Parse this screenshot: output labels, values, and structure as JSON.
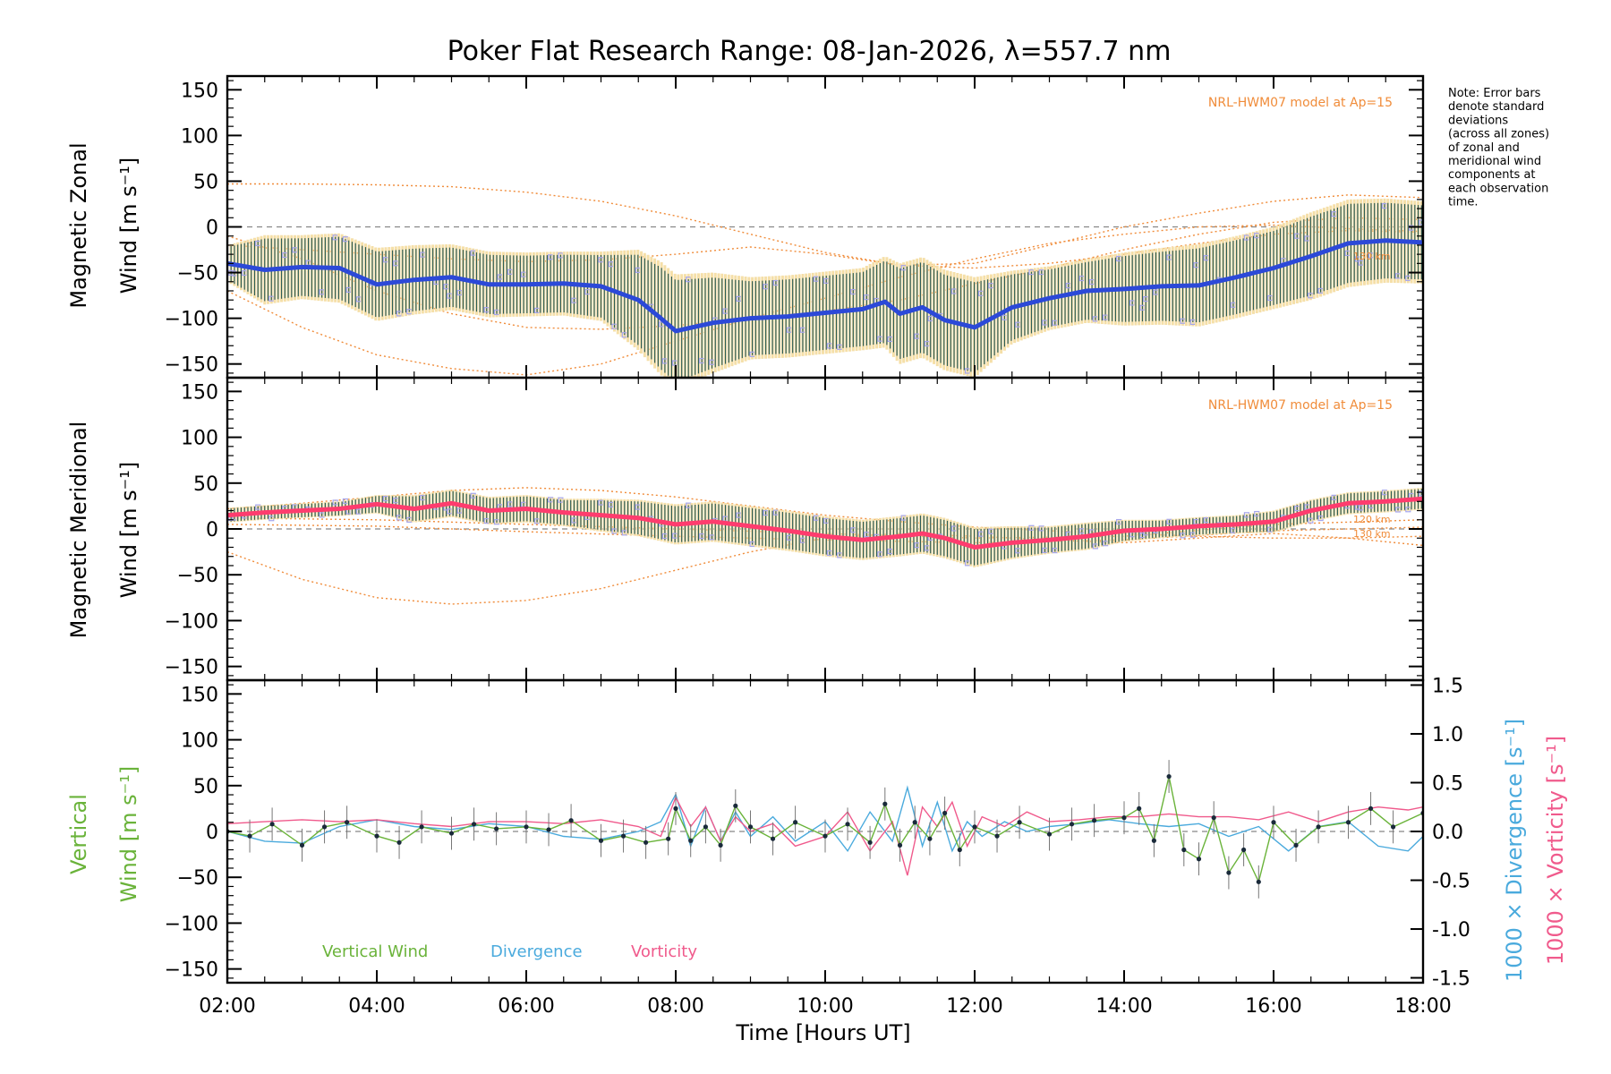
{
  "title": "Poker Flat Research Range: 08-Jan-2026, λ=557.7 nm",
  "note_lines": [
    "Note: Error bars",
    "denote standard",
    "deviations",
    "(across all zones)",
    "of zonal and",
    "meridional wind",
    "components at",
    "each observation",
    "time."
  ],
  "xlabel": "Time [Hours UT]",
  "x_tick_labels": [
    "02:00",
    "04:00",
    "06:00",
    "08:00",
    "10:00",
    "12:00",
    "14:00",
    "16:00",
    "18:00"
  ],
  "colors": {
    "axis": "#000000",
    "zonal": "#2c49d8",
    "zonal_light": "#5a9ae0",
    "meridional": "#ff3c6e",
    "model": "#f08c3a",
    "scatter": "#a6a6ec",
    "errbar": "#2f5e5a",
    "errbar_light": "#f5dfa8",
    "vertical": "#6ab33a",
    "divergence": "#4aaadd",
    "vorticity": "#f05a8c",
    "zero": "#888888"
  },
  "panels": {
    "zonal": {
      "ylabel_line1": "Magnetic Zonal",
      "ylabel_line2": "Wind [m s⁻¹]",
      "model_label": "NRL-HWM07 model at Ap=15",
      "alt_label": "130 km"
    },
    "meridional": {
      "ylabel_line1": "Magnetic Meridional",
      "ylabel_line2": "Wind [m s⁻¹]",
      "model_label": "NRL-HWM07 model at Ap=15",
      "alt_labels": [
        "120 km",
        "130 km"
      ]
    },
    "vertical": {
      "ylabel_line1": "Vertical",
      "ylabel_line2": "Wind [m s⁻¹]",
      "right_label_div": "1000 × Divergence [s⁻¹]",
      "right_label_vort": "1000 × Vorticity [s⁻¹]",
      "legend": {
        "vertical": "Vertical Wind",
        "divergence": "Divergence",
        "vorticity": "Vorticity"
      }
    }
  },
  "chart_data": [
    {
      "type": "line",
      "title": "Magnetic Zonal Wind",
      "ylabel": "Magnetic Zonal Wind [m s-1]",
      "xlim_hours": [
        2,
        18
      ],
      "ylim": [
        -165,
        165
      ],
      "yticks": [
        -150,
        -100,
        -50,
        0,
        50,
        100,
        150
      ],
      "series": [
        {
          "name": "zonal wind",
          "x": [
            2,
            2.5,
            3,
            3.5,
            4,
            4.5,
            5,
            5.5,
            6,
            6.5,
            7,
            7.5,
            7.8,
            8,
            8.5,
            9,
            9.5,
            10,
            10.5,
            10.8,
            11,
            11.3,
            11.6,
            12,
            12.5,
            13,
            13.5,
            14,
            14.5,
            15,
            15.5,
            16,
            16.5,
            17,
            17.5,
            18
          ],
          "y": [
            -40,
            -47,
            -44,
            -45,
            -63,
            -58,
            -55,
            -63,
            -63,
            -62,
            -65,
            -80,
            -100,
            -114,
            -105,
            -100,
            -98,
            -94,
            -90,
            -82,
            -95,
            -88,
            -102,
            -110,
            -88,
            -78,
            -70,
            -68,
            -65,
            -64,
            -55,
            -45,
            -32,
            -18,
            -15,
            -17
          ],
          "errors": [
            20,
            38,
            35,
            38,
            40,
            38,
            36,
            36,
            35,
            35,
            38,
            55,
            62,
            62,
            55,
            45,
            45,
            45,
            45,
            50,
            55,
            55,
            55,
            55,
            40,
            35,
            35,
            40,
            42,
            45,
            45,
            45,
            48,
            48,
            46,
            45
          ]
        },
        {
          "name": "NRL-HWM07 model (120 km)",
          "x": [
            2,
            3,
            4,
            5,
            6,
            7,
            8,
            9,
            10,
            11,
            12,
            13,
            14,
            15,
            16,
            17,
            18
          ],
          "y": [
            -10,
            -35,
            -70,
            -95,
            -110,
            -112,
            -108,
            -100,
            -92,
            -80,
            -62,
            -45,
            -25,
            -8,
            5,
            10,
            8
          ]
        },
        {
          "name": "NRL-HWM07 model (130 km)",
          "x": [
            2,
            3,
            4,
            5,
            6,
            7,
            8,
            9,
            10,
            11,
            12,
            13,
            14,
            15,
            16,
            17,
            18
          ],
          "y": [
            47,
            47,
            46,
            44,
            38,
            28,
            12,
            -8,
            -28,
            -42,
            -45,
            -40,
            -30,
            -18,
            -8,
            -4,
            -6
          ]
        },
        {
          "name": "NRL-HWM07 model (upper)",
          "x": [
            2,
            3,
            4,
            5,
            6,
            7,
            8,
            9,
            10,
            11,
            12,
            13,
            14,
            15,
            16,
            17,
            18
          ],
          "y": [
            -20,
            -25,
            -30,
            -35,
            -38,
            -36,
            -30,
            -22,
            -30,
            -42,
            -40,
            -20,
            0,
            15,
            28,
            35,
            32
          ]
        },
        {
          "name": "NRL-HWM07 model (lower)",
          "x": [
            2,
            3,
            4,
            5,
            6,
            7,
            8,
            9,
            10,
            11,
            12,
            13,
            14,
            15,
            16,
            17,
            18
          ],
          "y": [
            -70,
            -110,
            -140,
            -155,
            -162,
            -150,
            -125,
            -100,
            -78,
            -55,
            -35,
            -18,
            -8,
            0,
            2,
            -2,
            -5
          ]
        }
      ]
    },
    {
      "type": "line",
      "title": "Magnetic Meridional Wind",
      "ylabel": "Magnetic Meridional Wind [m s-1]",
      "xlim_hours": [
        2,
        18
      ],
      "ylim": [
        -165,
        165
      ],
      "yticks": [
        -150,
        -100,
        -50,
        0,
        50,
        100,
        150
      ],
      "series": [
        {
          "name": "meridional wind",
          "x": [
            2,
            2.5,
            3,
            3.5,
            4,
            4.5,
            5,
            5.5,
            6,
            6.5,
            7,
            7.5,
            8,
            8.5,
            9,
            9.5,
            10,
            10.5,
            11,
            11.3,
            11.6,
            12,
            12.5,
            13,
            13.5,
            14,
            14.5,
            15,
            15.5,
            16,
            16.5,
            17,
            17.5,
            18
          ],
          "y": [
            15,
            18,
            20,
            22,
            27,
            22,
            28,
            20,
            22,
            18,
            15,
            12,
            5,
            8,
            3,
            -2,
            -8,
            -12,
            -8,
            -5,
            -10,
            -20,
            -15,
            -12,
            -8,
            -2,
            0,
            3,
            5,
            8,
            20,
            28,
            30,
            33
          ],
          "errors": [
            8,
            8,
            8,
            8,
            10,
            15,
            15,
            15,
            15,
            15,
            18,
            20,
            22,
            22,
            22,
            22,
            22,
            22,
            22,
            22,
            22,
            22,
            18,
            15,
            15,
            12,
            10,
            10,
            10,
            12,
            12,
            12,
            12,
            12
          ]
        },
        {
          "name": "NRL-HWM07 model (upper)",
          "x": [
            2,
            3,
            4,
            5,
            6,
            7,
            8,
            9,
            10,
            11,
            12,
            13,
            14,
            15,
            16,
            17,
            18
          ],
          "y": [
            22,
            28,
            35,
            42,
            45,
            42,
            35,
            25,
            15,
            8,
            2,
            -2,
            -5,
            -8,
            -10,
            -10,
            -8
          ]
        },
        {
          "name": "NRL-HWM07 model (lower)",
          "x": [
            2,
            3,
            4,
            5,
            6,
            7,
            8,
            9,
            10,
            11,
            12,
            13,
            14,
            15,
            16,
            17,
            18
          ],
          "y": [
            -25,
            -55,
            -75,
            -82,
            -78,
            -65,
            -45,
            -25,
            -10,
            -5,
            -8,
            -12,
            -15,
            -10,
            -5,
            -10,
            -18
          ]
        },
        {
          "name": "NRL-HWM07 model (120 km)",
          "x": [
            2,
            4,
            6,
            8,
            10,
            12,
            14,
            16,
            18
          ],
          "y": [
            12,
            10,
            5,
            0,
            -5,
            -10,
            -8,
            5,
            10
          ]
        },
        {
          "name": "NRL-HWM07 model (130 km)",
          "x": [
            2,
            4,
            6,
            8,
            10,
            12,
            14,
            16,
            18
          ],
          "y": [
            5,
            3,
            -3,
            -8,
            -12,
            -15,
            -12,
            -2,
            2
          ]
        }
      ]
    },
    {
      "type": "line",
      "title": "Vertical Wind, Divergence, Vorticity",
      "ylabel": "Vertical Wind [m s-1]",
      "y2label": "1000 x Divergence / Vorticity [s-1]",
      "xlim_hours": [
        2,
        18
      ],
      "ylim": [
        -165,
        165
      ],
      "y2lim": [
        -1.55,
        1.55
      ],
      "yticks": [
        -150,
        -100,
        -50,
        0,
        50,
        100,
        150
      ],
      "y2ticks": [
        -1.5,
        -1.0,
        -0.5,
        0.0,
        0.5,
        1.0,
        1.5
      ],
      "series": [
        {
          "name": "Vertical Wind",
          "axis": "left",
          "x": [
            2,
            2.3,
            2.6,
            3,
            3.3,
            3.6,
            4,
            4.3,
            4.6,
            5,
            5.3,
            5.6,
            6,
            6.3,
            6.6,
            7,
            7.3,
            7.6,
            7.9,
            8,
            8.2,
            8.4,
            8.6,
            8.8,
            9,
            9.3,
            9.6,
            10,
            10.3,
            10.6,
            10.8,
            11,
            11.2,
            11.4,
            11.6,
            11.8,
            12,
            12.3,
            12.6,
            13,
            13.3,
            13.6,
            14,
            14.2,
            14.4,
            14.6,
            14.8,
            15,
            15.2,
            15.4,
            15.6,
            15.8,
            16,
            16.3,
            16.6,
            17,
            17.3,
            17.6,
            18
          ],
          "y": [
            0,
            -5,
            8,
            -15,
            5,
            10,
            -5,
            -12,
            5,
            -2,
            8,
            3,
            5,
            2,
            12,
            -10,
            -5,
            -12,
            -8,
            25,
            -10,
            5,
            -15,
            28,
            5,
            -8,
            10,
            -5,
            8,
            -12,
            30,
            -15,
            10,
            -8,
            20,
            -20,
            5,
            -5,
            10,
            -3,
            8,
            12,
            15,
            25,
            -10,
            60,
            -20,
            -30,
            15,
            -45,
            -20,
            -55,
            10,
            -15,
            5,
            10,
            25,
            5,
            20
          ]
        },
        {
          "name": "Divergence",
          "axis": "right",
          "x": [
            2,
            2.5,
            3,
            3.5,
            4,
            4.5,
            5,
            5.5,
            6,
            6.5,
            7,
            7.5,
            7.8,
            8,
            8.2,
            8.4,
            8.6,
            8.8,
            9,
            9.3,
            9.6,
            10,
            10.3,
            10.6,
            10.9,
            11.1,
            11.3,
            11.5,
            11.7,
            11.9,
            12.1,
            12.4,
            12.7,
            13,
            13.4,
            13.8,
            14.2,
            14.6,
            15,
            15.4,
            15.8,
            16.2,
            16.6,
            17,
            17.4,
            17.8,
            18
          ],
          "y": [
            0,
            -0.1,
            -0.12,
            0.05,
            0.12,
            0.05,
            0.02,
            0.08,
            0.05,
            -0.05,
            -0.08,
            0,
            0.1,
            0.38,
            -0.15,
            0.25,
            -0.1,
            0.2,
            -0.05,
            0.15,
            -0.1,
            0.1,
            -0.2,
            0.2,
            -0.1,
            0.45,
            -0.15,
            0.3,
            -0.2,
            0.1,
            -0.05,
            0.1,
            0,
            0.05,
            0.08,
            0.12,
            0.08,
            0.05,
            0.08,
            -0.05,
            0.05,
            -0.2,
            0.05,
            0.1,
            -0.15,
            -0.2,
            -0.05
          ]
        },
        {
          "name": "Vorticity",
          "axis": "right",
          "x": [
            2,
            2.5,
            3,
            3.5,
            4,
            4.5,
            5,
            5.5,
            6,
            6.5,
            7,
            7.5,
            7.8,
            8,
            8.2,
            8.4,
            8.6,
            8.8,
            9,
            9.3,
            9.6,
            10,
            10.3,
            10.6,
            10.9,
            11.1,
            11.3,
            11.5,
            11.7,
            11.9,
            12.1,
            12.4,
            12.7,
            13,
            13.4,
            13.8,
            14.2,
            14.6,
            15,
            15.4,
            15.8,
            16.2,
            16.6,
            17,
            17.4,
            17.8,
            18
          ],
          "y": [
            0.08,
            0.1,
            0.12,
            0.1,
            0.12,
            0.08,
            0.05,
            0.1,
            0.1,
            0.08,
            0.12,
            0.05,
            -0.05,
            0.35,
            0.05,
            0.25,
            -0.1,
            0.15,
            0,
            0.08,
            -0.15,
            -0.05,
            0.2,
            -0.2,
            0.1,
            -0.45,
            0.25,
            0.05,
            0.3,
            -0.15,
            0.15,
            0.05,
            0.2,
            0.1,
            0.12,
            0.15,
            0.15,
            0.18,
            0.15,
            0.15,
            0.12,
            0.2,
            0.1,
            0.2,
            0.25,
            0.22,
            0.25
          ]
        }
      ]
    }
  ]
}
